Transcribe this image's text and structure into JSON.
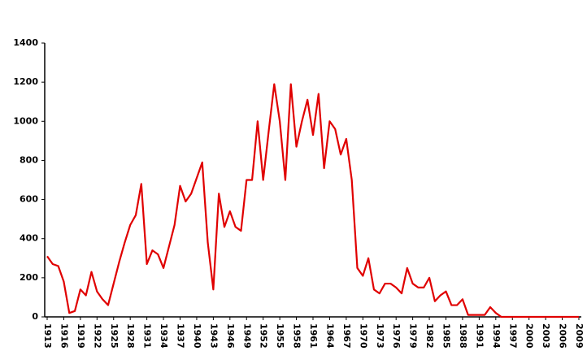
{
  "chart_data": {
    "type": "line",
    "x": [
      1913,
      1914,
      1915,
      1916,
      1917,
      1918,
      1919,
      1920,
      1921,
      1922,
      1923,
      1924,
      1925,
      1926,
      1927,
      1928,
      1929,
      1930,
      1931,
      1932,
      1933,
      1934,
      1935,
      1936,
      1937,
      1938,
      1939,
      1940,
      1941,
      1942,
      1943,
      1944,
      1945,
      1946,
      1947,
      1948,
      1949,
      1950,
      1951,
      1952,
      1953,
      1954,
      1955,
      1956,
      1957,
      1958,
      1959,
      1960,
      1961,
      1962,
      1963,
      1964,
      1965,
      1966,
      1967,
      1968,
      1969,
      1970,
      1971,
      1972,
      1973,
      1974,
      1975,
      1976,
      1977,
      1978,
      1979,
      1980,
      1981,
      1982,
      1983,
      1984,
      1985,
      1986,
      1987,
      1988,
      1989,
      1990,
      1991,
      1992,
      1993,
      1994,
      1995,
      1996,
      1997,
      1998,
      1999,
      2000,
      2001,
      2002,
      2003,
      2004,
      2005,
      2006,
      2007,
      2008,
      2009
    ],
    "values": [
      310,
      270,
      260,
      180,
      20,
      30,
      140,
      110,
      230,
      130,
      90,
      60,
      170,
      280,
      380,
      470,
      520,
      680,
      270,
      340,
      320,
      250,
      360,
      470,
      670,
      590,
      630,
      710,
      790,
      380,
      140,
      630,
      460,
      540,
      460,
      440,
      700,
      700,
      1000,
      700,
      950,
      1190,
      1000,
      700,
      1190,
      870,
      1000,
      1110,
      930,
      1140,
      760,
      1000,
      960,
      830,
      910,
      700,
      250,
      210,
      300,
      140,
      120,
      170,
      170,
      150,
      120,
      250,
      170,
      150,
      150,
      200,
      80,
      110,
      130,
      60,
      60,
      90,
      10,
      10,
      10,
      10,
      50,
      20,
      0,
      0,
      0,
      0,
      0,
      0,
      0,
      0,
      0,
      0,
      0,
      0,
      0,
      0,
      0
    ],
    "color": "#e00000",
    "xlim": [
      1913,
      2009
    ],
    "xticks": [
      1913,
      1916,
      1919,
      1922,
      1925,
      1928,
      1931,
      1934,
      1937,
      1940,
      1943,
      1946,
      1949,
      1952,
      1955,
      1958,
      1961,
      1964,
      1967,
      1970,
      1973,
      1976,
      1979,
      1982,
      1985,
      1988,
      1991,
      1994,
      1997,
      2000,
      2003,
      2006,
      2009
    ],
    "ylim": [
      0,
      1400
    ],
    "yticks": [
      0,
      200,
      400,
      600,
      800,
      1000,
      1200,
      1400
    ],
    "grid": false
  }
}
